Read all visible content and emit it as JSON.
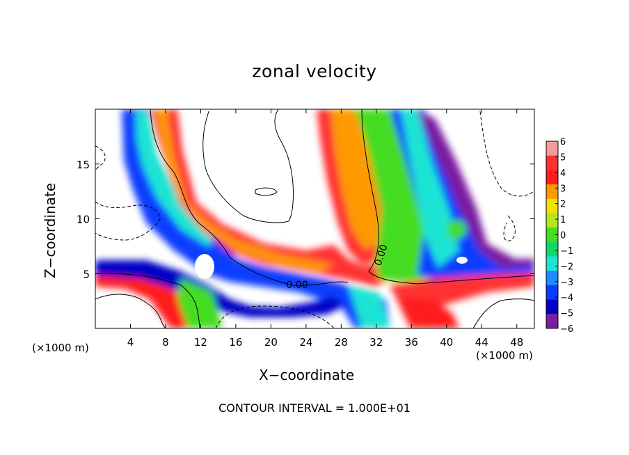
{
  "chart_data": {
    "type": "heatmap",
    "title": "zonal velocity",
    "xlabel": "X−coordinate",
    "ylabel": "Z−coordinate",
    "x_unit": "(×1000 m)",
    "y_unit": "(×1000 m)",
    "xlim": [
      0,
      50
    ],
    "ylim": [
      0,
      20
    ],
    "x_ticks": [
      4,
      8,
      12,
      16,
      20,
      24,
      28,
      32,
      36,
      40,
      44,
      48
    ],
    "y_ticks": [
      5,
      10,
      15
    ],
    "colorbar": {
      "ticks": [
        6,
        5,
        4,
        3,
        2,
        1,
        0,
        -1,
        -2,
        -3,
        -4,
        -5,
        -6
      ],
      "tick_labels": [
        "6",
        "5",
        "4",
        "3",
        "2",
        "1",
        "0",
        "−1",
        "−2",
        "−3",
        "−4",
        "−5",
        "−6"
      ],
      "colors": [
        "#f59a9a",
        "#ff3030",
        "#ff1c1c",
        "#ff9900",
        "#f2e000",
        "#b5e61d",
        "#44dd22",
        "#11d866",
        "#1ae4d4",
        "#1a8cff",
        "#0a3cff",
        "#0000c8",
        "#7a1fa0"
      ]
    },
    "contour_labels": [
      "0.00",
      "0.00"
    ],
    "contour_interval_text": "CONTOUR INTERVAL = 1.000E+01"
  }
}
